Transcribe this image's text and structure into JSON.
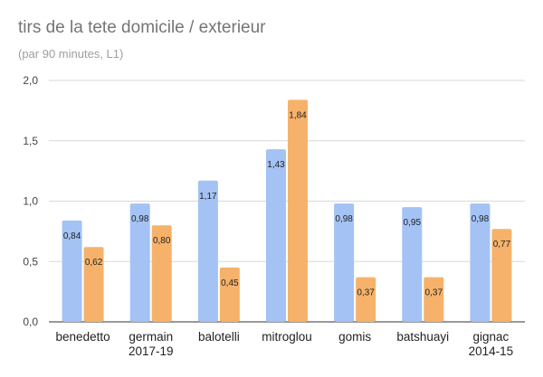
{
  "chart_data": {
    "type": "bar",
    "title": "tirs de la tete domicile / exterieur",
    "subtitle": "(par 90 minutes, L1)",
    "categories": [
      [
        "benedetto"
      ],
      [
        "germain",
        "2017-19"
      ],
      [
        "balotelli"
      ],
      [
        "mitroglou"
      ],
      [
        "gomis"
      ],
      [
        "batshuayi"
      ],
      [
        "gignac",
        "2014-15"
      ]
    ],
    "series": [
      {
        "values": [
          0.84,
          0.98,
          1.17,
          1.43,
          0.98,
          0.95,
          0.98
        ],
        "labels": [
          "0,84",
          "0,98",
          "1,17",
          "1,43",
          "0,98",
          "0,95",
          "0,98"
        ],
        "color": "#a4c2f4"
      },
      {
        "values": [
          0.62,
          0.8,
          0.45,
          1.84,
          0.37,
          0.37,
          0.77
        ],
        "labels": [
          "0,62",
          "0,80",
          "0,45",
          "1,84",
          "0,37",
          "0,37",
          "0,77"
        ],
        "color": "#f6b26b"
      }
    ],
    "yticks": [
      0,
      0.5,
      1.0,
      1.5,
      2.0
    ],
    "yticklabels": [
      "0,0",
      "0,5",
      "1,0",
      "1,5",
      "2,0"
    ],
    "ylim": [
      0,
      2.0
    ],
    "grid": true,
    "legend": "none"
  }
}
